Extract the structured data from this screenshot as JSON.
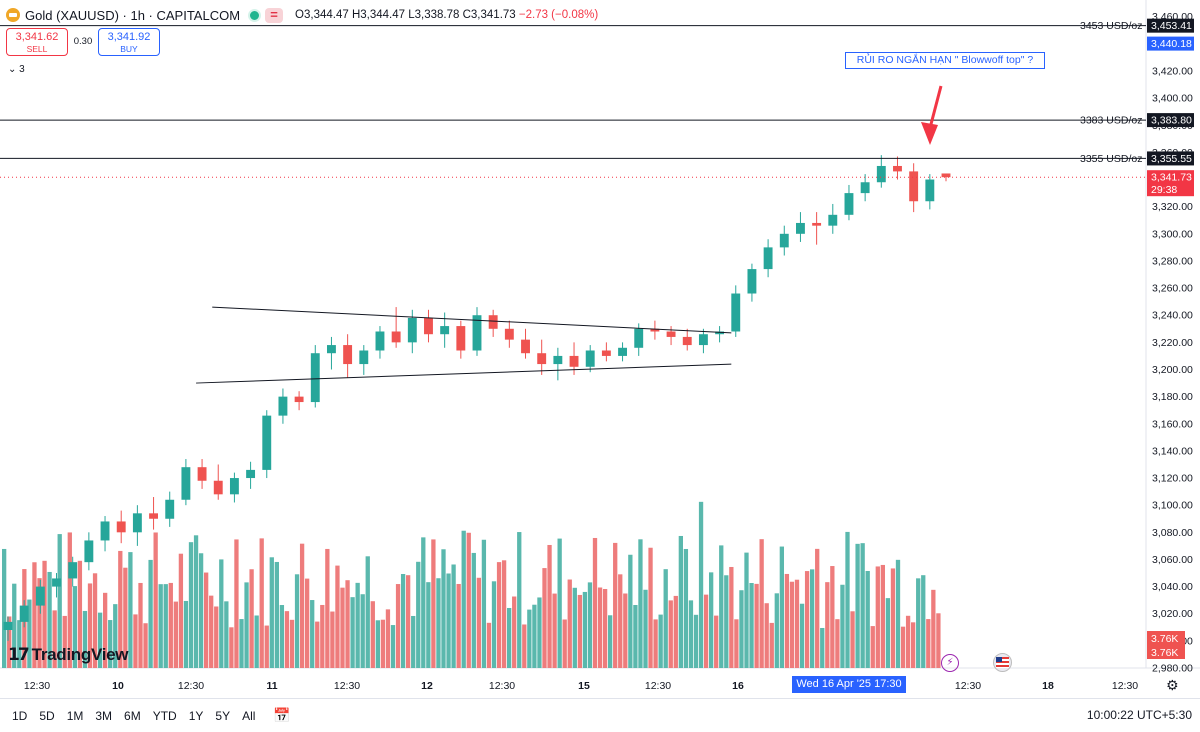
{
  "header": {
    "symbol": "Gold (XAUUSD) · 1h · CAPITALCOM",
    "ohlc": {
      "o": "O3,344.47",
      "h": "H3,344.47",
      "l": "L3,338.78",
      "c": "C3,341.73",
      "chg": "−2.73 (−0.08%)"
    }
  },
  "trade": {
    "sell_price": "3,341.62",
    "sell_label": "SELL",
    "spread": "0.30",
    "buy_price": "3,341.92",
    "buy_label": "BUY",
    "indicators_count": "3"
  },
  "annotation": "RỦI RO NGẮN HẠN \" Blowwoff top\" ?",
  "watermark": "TradingView",
  "timeframes": [
    "1D",
    "5D",
    "1M",
    "3M",
    "6M",
    "YTD",
    "1Y",
    "5Y",
    "All"
  ],
  "clock": "10:00:22 UTC+5:30",
  "x_cursor_label": "Wed 16 Apr '25   17:30",
  "icons": {
    "settings": "gear-icon",
    "calendar": "calendar-range-icon",
    "flash": "lightning-icon",
    "flag": "us-flag-icon"
  },
  "colors": {
    "up": "#26a69a",
    "down": "#ef5350",
    "vol_up": "#5ab8ad",
    "vol_down": "#ee7c7c",
    "accent": "#2962ff"
  },
  "chart_data": {
    "type": "candlestick",
    "ylim": [
      2980,
      3462
    ],
    "y_ticks": [
      3460,
      3440,
      3420,
      3400,
      3380,
      3360,
      3340,
      3320,
      3300,
      3280,
      3260,
      3240,
      3220,
      3200,
      3180,
      3160,
      3140,
      3120,
      3100,
      3080,
      3060,
      3040,
      3020,
      3000,
      2980
    ],
    "x_ticks": [
      "12:30",
      "10",
      "12:30",
      "11",
      "12:30",
      "12",
      "12:30",
      "15",
      "12:30",
      "16",
      "12:30",
      "18",
      "12:30"
    ],
    "hlines": [
      {
        "label": "3453 USD/oz",
        "value": 3453.41,
        "badge": "3,453.41",
        "color": "#131722"
      },
      {
        "label": "3383 USD/oz",
        "value": 3383.8,
        "badge": "3,383.80",
        "color": "#131722"
      },
      {
        "label": "3355 USD/oz",
        "value": 3355.55,
        "badge": "3,355.55",
        "color": "#131722"
      }
    ],
    "extra_badge": {
      "value": 3440.18,
      "text": "3,440.18",
      "color": "#2962ff"
    },
    "last_price": {
      "value": 3341.73,
      "text": "3,341.73",
      "countdown": "29:38",
      "color": "#f23645"
    },
    "volume_badges": [
      "3.76K",
      "3.76K"
    ],
    "trendlines": [
      {
        "from": [
          13,
          3246
        ],
        "to": [
          54,
          3227
        ]
      },
      {
        "from": [
          12,
          3190
        ],
        "to": [
          54,
          3204
        ]
      }
    ],
    "candles": [
      {
        "o": 3008,
        "h": 3018,
        "l": 3000,
        "c": 3014
      },
      {
        "o": 3014,
        "h": 3030,
        "l": 3010,
        "c": 3026
      },
      {
        "o": 3026,
        "h": 3045,
        "l": 3020,
        "c": 3040
      },
      {
        "o": 3040,
        "h": 3050,
        "l": 3032,
        "c": 3046
      },
      {
        "o": 3046,
        "h": 3062,
        "l": 3040,
        "c": 3058
      },
      {
        "o": 3058,
        "h": 3080,
        "l": 3052,
        "c": 3074
      },
      {
        "o": 3074,
        "h": 3092,
        "l": 3066,
        "c": 3088
      },
      {
        "o": 3088,
        "h": 3096,
        "l": 3072,
        "c": 3080
      },
      {
        "o": 3080,
        "h": 3100,
        "l": 3070,
        "c": 3094
      },
      {
        "o": 3094,
        "h": 3106,
        "l": 3082,
        "c": 3090
      },
      {
        "o": 3090,
        "h": 3110,
        "l": 3084,
        "c": 3104
      },
      {
        "o": 3104,
        "h": 3134,
        "l": 3100,
        "c": 3128
      },
      {
        "o": 3128,
        "h": 3134,
        "l": 3112,
        "c": 3118
      },
      {
        "o": 3118,
        "h": 3130,
        "l": 3104,
        "c": 3108
      },
      {
        "o": 3108,
        "h": 3124,
        "l": 3102,
        "c": 3120
      },
      {
        "o": 3120,
        "h": 3132,
        "l": 3112,
        "c": 3126
      },
      {
        "o": 3126,
        "h": 3170,
        "l": 3120,
        "c": 3166
      },
      {
        "o": 3166,
        "h": 3186,
        "l": 3160,
        "c": 3180
      },
      {
        "o": 3180,
        "h": 3184,
        "l": 3170,
        "c": 3176
      },
      {
        "o": 3176,
        "h": 3218,
        "l": 3172,
        "c": 3212
      },
      {
        "o": 3212,
        "h": 3224,
        "l": 3200,
        "c": 3218
      },
      {
        "o": 3218,
        "h": 3226,
        "l": 3194,
        "c": 3204
      },
      {
        "o": 3204,
        "h": 3218,
        "l": 3196,
        "c": 3214
      },
      {
        "o": 3214,
        "h": 3232,
        "l": 3208,
        "c": 3228
      },
      {
        "o": 3228,
        "h": 3246,
        "l": 3216,
        "c": 3220
      },
      {
        "o": 3220,
        "h": 3244,
        "l": 3212,
        "c": 3238
      },
      {
        "o": 3238,
        "h": 3244,
        "l": 3220,
        "c": 3226
      },
      {
        "o": 3226,
        "h": 3242,
        "l": 3216,
        "c": 3232
      },
      {
        "o": 3232,
        "h": 3236,
        "l": 3208,
        "c": 3214
      },
      {
        "o": 3214,
        "h": 3246,
        "l": 3210,
        "c": 3240
      },
      {
        "o": 3240,
        "h": 3244,
        "l": 3224,
        "c": 3230
      },
      {
        "o": 3230,
        "h": 3236,
        "l": 3216,
        "c": 3222
      },
      {
        "o": 3222,
        "h": 3230,
        "l": 3208,
        "c": 3212
      },
      {
        "o": 3212,
        "h": 3222,
        "l": 3196,
        "c": 3204
      },
      {
        "o": 3204,
        "h": 3216,
        "l": 3192,
        "c": 3210
      },
      {
        "o": 3210,
        "h": 3220,
        "l": 3196,
        "c": 3202
      },
      {
        "o": 3202,
        "h": 3218,
        "l": 3198,
        "c": 3214
      },
      {
        "o": 3214,
        "h": 3220,
        "l": 3206,
        "c": 3210
      },
      {
        "o": 3210,
        "h": 3220,
        "l": 3206,
        "c": 3216
      },
      {
        "o": 3216,
        "h": 3234,
        "l": 3210,
        "c": 3230
      },
      {
        "o": 3230,
        "h": 3236,
        "l": 3222,
        "c": 3228
      },
      {
        "o": 3228,
        "h": 3232,
        "l": 3218,
        "c": 3224
      },
      {
        "o": 3224,
        "h": 3230,
        "l": 3214,
        "c": 3218
      },
      {
        "o": 3218,
        "h": 3230,
        "l": 3212,
        "c": 3226
      },
      {
        "o": 3226,
        "h": 3232,
        "l": 3220,
        "c": 3228
      },
      {
        "o": 3228,
        "h": 3262,
        "l": 3224,
        "c": 3256
      },
      {
        "o": 3256,
        "h": 3278,
        "l": 3250,
        "c": 3274
      },
      {
        "o": 3274,
        "h": 3296,
        "l": 3268,
        "c": 3290
      },
      {
        "o": 3290,
        "h": 3306,
        "l": 3284,
        "c": 3300
      },
      {
        "o": 3300,
        "h": 3316,
        "l": 3294,
        "c": 3308
      },
      {
        "o": 3308,
        "h": 3316,
        "l": 3292,
        "c": 3306
      },
      {
        "o": 3306,
        "h": 3322,
        "l": 3300,
        "c": 3314
      },
      {
        "o": 3314,
        "h": 3336,
        "l": 3310,
        "c": 3330
      },
      {
        "o": 3330,
        "h": 3344,
        "l": 3324,
        "c": 3338
      },
      {
        "o": 3338,
        "h": 3358,
        "l": 3334,
        "c": 3350
      },
      {
        "o": 3350,
        "h": 3357,
        "l": 3340,
        "c": 3346
      },
      {
        "o": 3346,
        "h": 3352,
        "l": 3316,
        "c": 3324
      },
      {
        "o": 3324,
        "h": 3344,
        "l": 3318,
        "c": 3340
      },
      {
        "o": 3344.47,
        "h": 3344.47,
        "l": 3338.78,
        "c": 3341.73
      }
    ]
  }
}
